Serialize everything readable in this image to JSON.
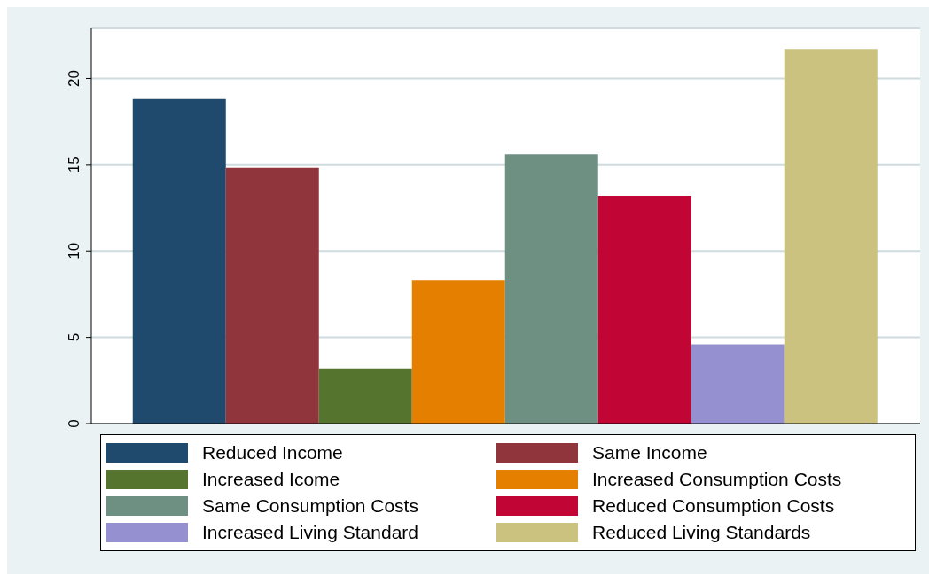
{
  "chart_data": {
    "type": "bar",
    "categories": [
      null
    ],
    "series": [
      {
        "name": "Reduced Income",
        "color": "#1f4a6e",
        "values": [
          18.8
        ]
      },
      {
        "name": "Same Income",
        "color": "#8f353b",
        "values": [
          14.8
        ]
      },
      {
        "name": "Increased Icome",
        "color": "#55752f",
        "values": [
          3.2
        ]
      },
      {
        "name": "Increased Consumption Costs",
        "color": "#e47f00",
        "values": [
          8.3
        ]
      },
      {
        "name": "Same Consumption Costs",
        "color": "#6e9083",
        "values": [
          15.6
        ]
      },
      {
        "name": "Reduced Consumption Costs",
        "color": "#c10534",
        "values": [
          13.2
        ]
      },
      {
        "name": "Increased Living Standard",
        "color": "#9590d0",
        "values": [
          4.6
        ]
      },
      {
        "name": "Reduced Living Standards",
        "color": "#cbc280",
        "values": [
          21.7
        ]
      }
    ],
    "ylim": [
      0,
      22.9
    ],
    "yticks": [
      0,
      5,
      10,
      15,
      20
    ],
    "grid": "y",
    "legend": "bottom"
  }
}
